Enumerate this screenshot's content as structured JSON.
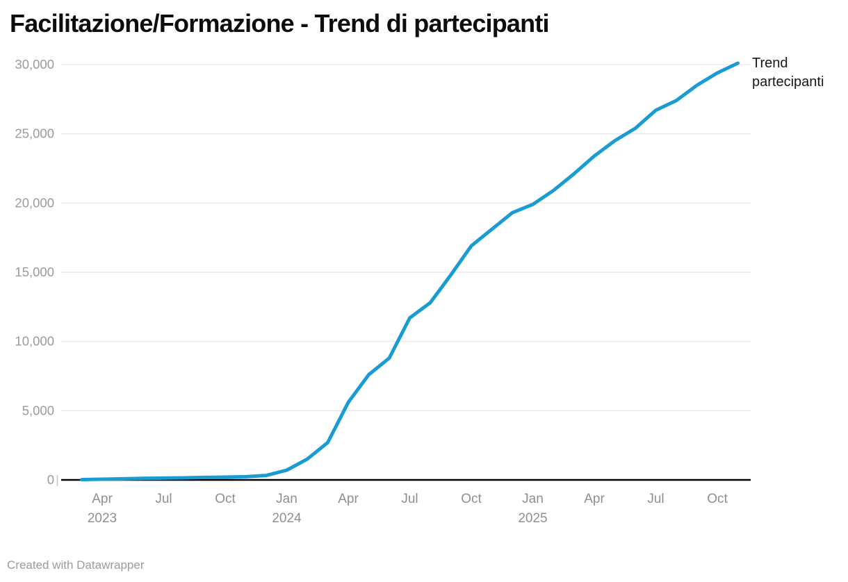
{
  "header": {
    "title": "Facilitazione/Formazione - Trend di partecipanti"
  },
  "legend": {
    "line1": "Trend",
    "line2": "partecipanti",
    "full_label": "Trend partecipanti"
  },
  "footer": {
    "credit": "Created with Datawrapper"
  },
  "colors": {
    "line": "#1a9cd3",
    "grid": "#e8e8e8",
    "baseline": "#000000",
    "y_tick_text": "#9b9b9b",
    "x_tick_text": "#8f8f8f",
    "title_text": "#0d0d0d",
    "legend_text": "#161616",
    "footer_text": "#9b9b9b",
    "edge_tick": "#c4c4c4"
  },
  "chart_data": {
    "type": "line",
    "title": "Facilitazione/Formazione - Trend di partecipanti",
    "xlabel": "",
    "ylabel": "",
    "ylim": [
      0,
      30000
    ],
    "grid": "horizontal",
    "legend_position": "right-of-line-end",
    "x_range": [
      "2023-03",
      "2025-11"
    ],
    "series": [
      {
        "name": "Trend partecipanti",
        "x": [
          "2023-03",
          "2023-04",
          "2023-05",
          "2023-06",
          "2023-07",
          "2023-08",
          "2023-09",
          "2023-10",
          "2023-11",
          "2023-12",
          "2024-01",
          "2024-02",
          "2024-03",
          "2024-04",
          "2024-05",
          "2024-06",
          "2024-07",
          "2024-08",
          "2024-09",
          "2024-10",
          "2024-11",
          "2024-12",
          "2025-01",
          "2025-02",
          "2025-03",
          "2025-04",
          "2025-05",
          "2025-06",
          "2025-07",
          "2025-08",
          "2025-09",
          "2025-10",
          "2025-11"
        ],
        "values": [
          20,
          50,
          80,
          110,
          130,
          150,
          180,
          200,
          230,
          320,
          700,
          1500,
          2700,
          5600,
          7600,
          8800,
          11700,
          12800,
          14800,
          16900,
          18100,
          19300,
          19900,
          20900,
          22100,
          23400,
          24500,
          25400,
          26700,
          27400,
          28500,
          29400,
          30100
        ]
      }
    ],
    "y_tick_labels": [
      {
        "value": 0,
        "label": "0"
      },
      {
        "value": 5000,
        "label": "5,000"
      },
      {
        "value": 10000,
        "label": "10,000"
      },
      {
        "value": 15000,
        "label": "15,000"
      },
      {
        "value": 20000,
        "label": "20,000"
      },
      {
        "value": 25000,
        "label": "25,000"
      },
      {
        "value": 30000,
        "label": "30,000"
      }
    ],
    "x_tick_labels": [
      {
        "x": "2023-04",
        "month": "Apr",
        "year": "2023"
      },
      {
        "x": "2023-07",
        "month": "Jul",
        "year": ""
      },
      {
        "x": "2023-10",
        "month": "Oct",
        "year": ""
      },
      {
        "x": "2024-01",
        "month": "Jan",
        "year": "2024"
      },
      {
        "x": "2024-04",
        "month": "Apr",
        "year": ""
      },
      {
        "x": "2024-07",
        "month": "Jul",
        "year": ""
      },
      {
        "x": "2024-10",
        "month": "Oct",
        "year": ""
      },
      {
        "x": "2025-01",
        "month": "Jan",
        "year": "2025"
      },
      {
        "x": "2025-04",
        "month": "Apr",
        "year": ""
      },
      {
        "x": "2025-07",
        "month": "Jul",
        "year": ""
      },
      {
        "x": "2025-10",
        "month": "Oct",
        "year": ""
      }
    ]
  }
}
